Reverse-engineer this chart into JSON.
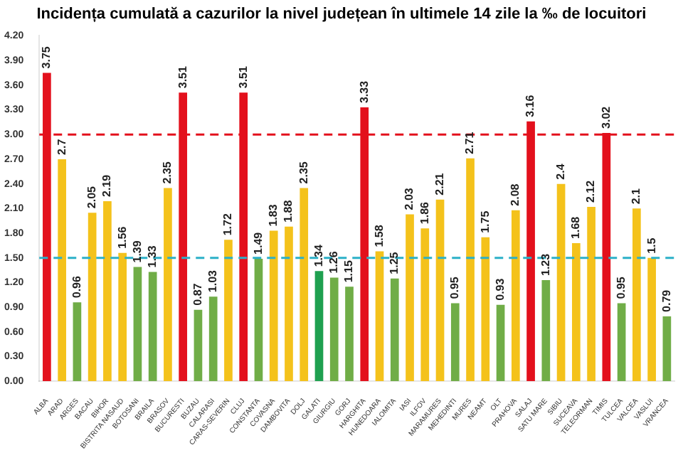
{
  "chart_data": {
    "type": "bar",
    "title": "Incidența cumulată a cazurilor la nivel județean în ultimele 14 zile la ‰ de locuitori",
    "categories": [
      "ALBA",
      "ARAD",
      "ARGES",
      "BACAU",
      "BIHOR",
      "BISTRITA NASAUD",
      "BOTOSANI",
      "BRAILA",
      "BRASOV",
      "BUCURESTI",
      "BUZAU",
      "CALARASI",
      "CARAS-SEVERIN",
      "CLUJ",
      "CONSTANTA",
      "COVASNA",
      "DAMBOVITA",
      "DOLJ",
      "GALATI",
      "GIURGIU",
      "GORJ",
      "HARGHITA",
      "HUNEDOARA",
      "IALOMITA",
      "IASI",
      "ILFOV",
      "MARAMURES",
      "MEHEDINTI",
      "MURES",
      "NEAMT",
      "OLT",
      "PRAHOVA",
      "SALAJ",
      "SATU MARE",
      "SIBIU",
      "SUCEAVA",
      "TELEORMAN",
      "TIMIS",
      "TULCEA",
      "VALCEA",
      "VASLUI",
      "VRANCEA"
    ],
    "values": [
      3.75,
      2.7,
      0.96,
      2.05,
      2.19,
      1.56,
      1.39,
      1.33,
      2.35,
      3.51,
      0.87,
      1.03,
      1.72,
      3.51,
      1.49,
      1.83,
      1.88,
      2.35,
      1.34,
      1.26,
      1.15,
      3.33,
      1.58,
      1.25,
      2.03,
      1.86,
      2.21,
      0.95,
      2.71,
      1.75,
      0.93,
      2.08,
      3.16,
      1.23,
      2.4,
      1.68,
      2.12,
      3.02,
      0.95,
      2.1,
      1.5,
      0.79
    ],
    "colors": [
      "#e3101c",
      "#f4c21b",
      "#70ad47",
      "#f4c21b",
      "#f4c21b",
      "#f4c21b",
      "#70ad47",
      "#70ad47",
      "#f4c21b",
      "#e3101c",
      "#70ad47",
      "#70ad47",
      "#f4c21b",
      "#e3101c",
      "#70ad47",
      "#f4c21b",
      "#f4c21b",
      "#f4c21b",
      "#1fa050",
      "#70ad47",
      "#70ad47",
      "#e3101c",
      "#f4c21b",
      "#70ad47",
      "#f4c21b",
      "#f4c21b",
      "#f4c21b",
      "#70ad47",
      "#f4c21b",
      "#f4c21b",
      "#70ad47",
      "#f4c21b",
      "#e3101c",
      "#70ad47",
      "#f4c21b",
      "#f4c21b",
      "#f4c21b",
      "#e3101c",
      "#70ad47",
      "#f4c21b",
      "#f4c21b",
      "#70ad47"
    ],
    "ylim": [
      0,
      4.2
    ],
    "yticks": [
      {
        "value": 0,
        "label": "0.00"
      },
      {
        "value": 0.3,
        "label": "0.30"
      },
      {
        "value": 0.6,
        "label": "0.60"
      },
      {
        "value": 0.9,
        "label": "0.90"
      },
      {
        "value": 1.2,
        "label": "1.20"
      },
      {
        "value": 1.5,
        "label": "1.50"
      },
      {
        "value": 1.8,
        "label": "1.80"
      },
      {
        "value": 2.1,
        "label": "2.10"
      },
      {
        "value": 2.4,
        "label": "2.40"
      },
      {
        "value": 2.7,
        "label": "2.70"
      },
      {
        "value": 3,
        "label": "3.00"
      },
      {
        "value": 3.3,
        "label": "3.30"
      },
      {
        "value": 3.6,
        "label": "3.60"
      },
      {
        "value": 3.9,
        "label": "3.90"
      },
      {
        "value": 4.2,
        "label": "4.20"
      }
    ],
    "ref_lines": [
      {
        "axis": "y",
        "value": 3,
        "color": "#e3101c",
        "line_style": "dashed"
      },
      {
        "axis": "y",
        "value": 1.5,
        "color": "#2bb0c8",
        "line_style": "dashed"
      }
    ],
    "data_labels": true,
    "grid": false,
    "legend": false
  }
}
